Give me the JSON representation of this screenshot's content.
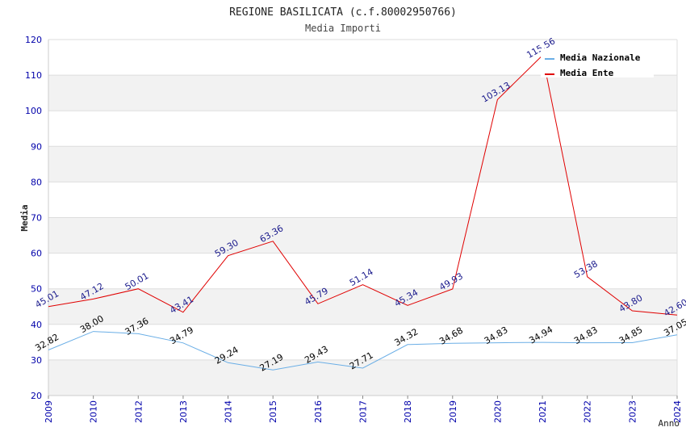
{
  "chart_data": {
    "type": "line",
    "title": "REGIONE BASILICATA (c.f.80002950766)",
    "subtitle": "Media Importi",
    "xlabel": "Anno",
    "ylabel": "Media",
    "ylim": [
      20,
      120
    ],
    "yticks": [
      20,
      30,
      40,
      50,
      60,
      70,
      80,
      90,
      100,
      110,
      120
    ],
    "categories": [
      "2009",
      "2010",
      "2012",
      "2013",
      "2014",
      "2015",
      "2016",
      "2017",
      "2018",
      "2019",
      "2020",
      "2021",
      "2022",
      "2023",
      "2024"
    ],
    "series": [
      {
        "name": "Media Nazionale",
        "color": "#6aaee6",
        "label_color": "#000000",
        "values": [
          32.82,
          38.0,
          37.36,
          34.79,
          29.24,
          27.19,
          29.43,
          27.71,
          34.32,
          34.68,
          34.83,
          34.94,
          34.83,
          34.85,
          37.05
        ],
        "labels": [
          "32.82",
          "38.00",
          "37.36",
          "34.79",
          "29.24",
          "27.19",
          "29.43",
          "27.71",
          "34.32",
          "34.68",
          "34.83",
          "34.94",
          "34.83",
          "34.85",
          "37.05"
        ]
      },
      {
        "name": "Media Ente",
        "color": "#e00000",
        "label_color": "#1a1a8c",
        "values": [
          45.01,
          47.12,
          50.01,
          43.41,
          59.3,
          63.36,
          45.79,
          51.14,
          45.34,
          49.93,
          103.13,
          115.56,
          53.38,
          43.8,
          42.6
        ],
        "labels": [
          "45.01",
          "47.12",
          "50.01",
          "43.41",
          "59.30",
          "63.36",
          "45.79",
          "51.14",
          "45.34",
          "49.93",
          "103.13",
          "115.56",
          "53.38",
          "43.80",
          "42.60"
        ]
      }
    ],
    "legend_position": "top-right",
    "grid": true,
    "colors": {
      "band": "#f2f2f2",
      "grid": "#dddddd",
      "axis_text": "#0000aa",
      "title_text": "#222222",
      "subtitle_text": "#444444"
    }
  }
}
